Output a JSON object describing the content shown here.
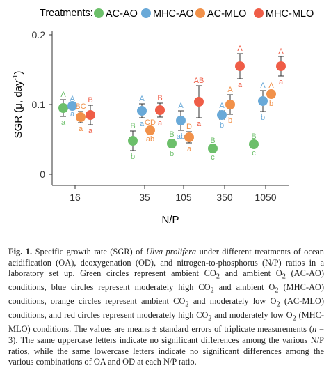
{
  "chart_data": {
    "type": "scatter",
    "legend_title": "Treatments:",
    "legend_position": "top",
    "ylabel_main": "SGR (μ, day",
    "ylabel_sup": "-1",
    "ylabel_end": ")",
    "xlabel": "N/P",
    "ylim": [
      0,
      0.2
    ],
    "yticks": [
      "0",
      "0.1",
      "0.2"
    ],
    "ytick_values": [
      0,
      0.1,
      0.2
    ],
    "categories": [
      "16",
      "35",
      "105",
      "350",
      "1050"
    ],
    "grid": false,
    "series": [
      {
        "name": "AC-AO",
        "color": "#6cbf6a",
        "values": [
          0.095,
          0.048,
          0.044,
          0.037,
          0.043
        ],
        "errors": [
          0.012,
          0.014,
          0.006,
          0.004,
          0.004
        ],
        "upper": [
          "A",
          "B",
          "B",
          "B",
          "B"
        ],
        "lower": [
          "a",
          "b",
          "b",
          "c",
          "c"
        ]
      },
      {
        "name": "MHC-AO",
        "color": "#69a9d8",
        "values": [
          0.098,
          0.091,
          0.077,
          0.085,
          0.105
        ],
        "errors": [
          0.003,
          0.01,
          0.014,
          0.006,
          0.015
        ],
        "upper": [
          "A",
          "A",
          "A",
          "A",
          "A"
        ],
        "lower": [
          "a",
          "a",
          "ab",
          "b",
          "b"
        ]
      },
      {
        "name": "AC-MLO",
        "color": "#f1914a",
        "values": [
          0.082,
          0.063,
          0.053,
          0.1,
          0.115
        ],
        "errors": [
          0.008,
          0.004,
          0.008,
          0.014,
          0.005
        ],
        "upper": [
          "BC",
          "CD",
          "D",
          "A",
          "A"
        ],
        "lower": [
          "a",
          "ab",
          "a",
          "b",
          "b"
        ]
      },
      {
        "name": "MHC-MLO",
        "color": "#ef5d47",
        "values": [
          0.085,
          0.092,
          0.104,
          0.155,
          0.155
        ],
        "errors": [
          0.014,
          0.01,
          0.023,
          0.018,
          0.014
        ],
        "upper": [
          "B",
          "B",
          "AB",
          "A",
          "A"
        ],
        "lower": [
          "a",
          "a",
          "a",
          "a",
          "a"
        ]
      }
    ]
  },
  "caption": {
    "fig_label": "Fig. 1.",
    "text_1": " Specific growth rate (SGR) of ",
    "species": "Ulva prolifera",
    "text_2": " under different treatments of ocean acidification (OA), deoxygenation (OD), and nitrogen-to-phosphorus (N/P) ratios in a laboratory set up. Green circles represent ambient CO",
    "text_3": " and ambient O",
    "text_4": " (AC-AO) conditions, blue circles represent moderately high CO",
    "text_5": " and ambient O",
    "text_6": " (MHC-AO) conditions, orange circles represent ambient CO",
    "text_7": " and moderately low O",
    "text_8": " (AC-MLO) conditions, and red circles represent moderately high CO",
    "text_9": " and moderately low O",
    "text_10": " (MHC-MLO) conditions. The values are means ± standard errors of triplicate measurements (",
    "n_symbol": "n",
    "text_11": " = 3). The same uppercase letters indicate no significant differences among the various N/P ratios, while the same lowercase letters indicate no significant differences among the various combinations of OA and OD at each N/P ratio.",
    "sub": "2"
  }
}
